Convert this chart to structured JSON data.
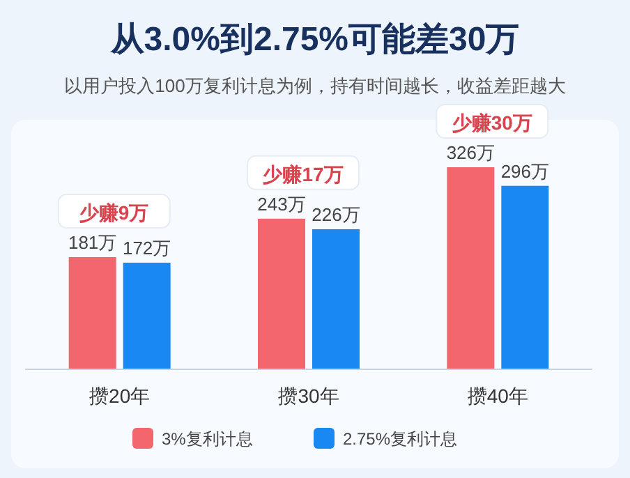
{
  "chart_data": {
    "type": "bar",
    "title": "从3.0%到2.75%可能差30万",
    "subtitle": "以用户投入100万复利计息为例，持有时间越长，收益差距越大",
    "categories": [
      "攒20年",
      "攒30年",
      "攒40年"
    ],
    "series": [
      {
        "name": "3%复利计息",
        "color": "#f4666d",
        "values": [
          181,
          243,
          326
        ],
        "value_labels": [
          "181万",
          "243万",
          "326万"
        ]
      },
      {
        "name": "2.75%复利计息",
        "color": "#1a88f2",
        "values": [
          172,
          226,
          296
        ],
        "value_labels": [
          "172万",
          "226万",
          "296万"
        ]
      }
    ],
    "annotations": [
      {
        "text": "少赚9万",
        "x": "攒20年",
        "y": 181
      },
      {
        "text": "少赚17万",
        "x": "攒30年",
        "y": 243
      },
      {
        "text": "少赚30万",
        "x": "攒40年",
        "y": 326
      }
    ],
    "legend": "bottom"
  }
}
